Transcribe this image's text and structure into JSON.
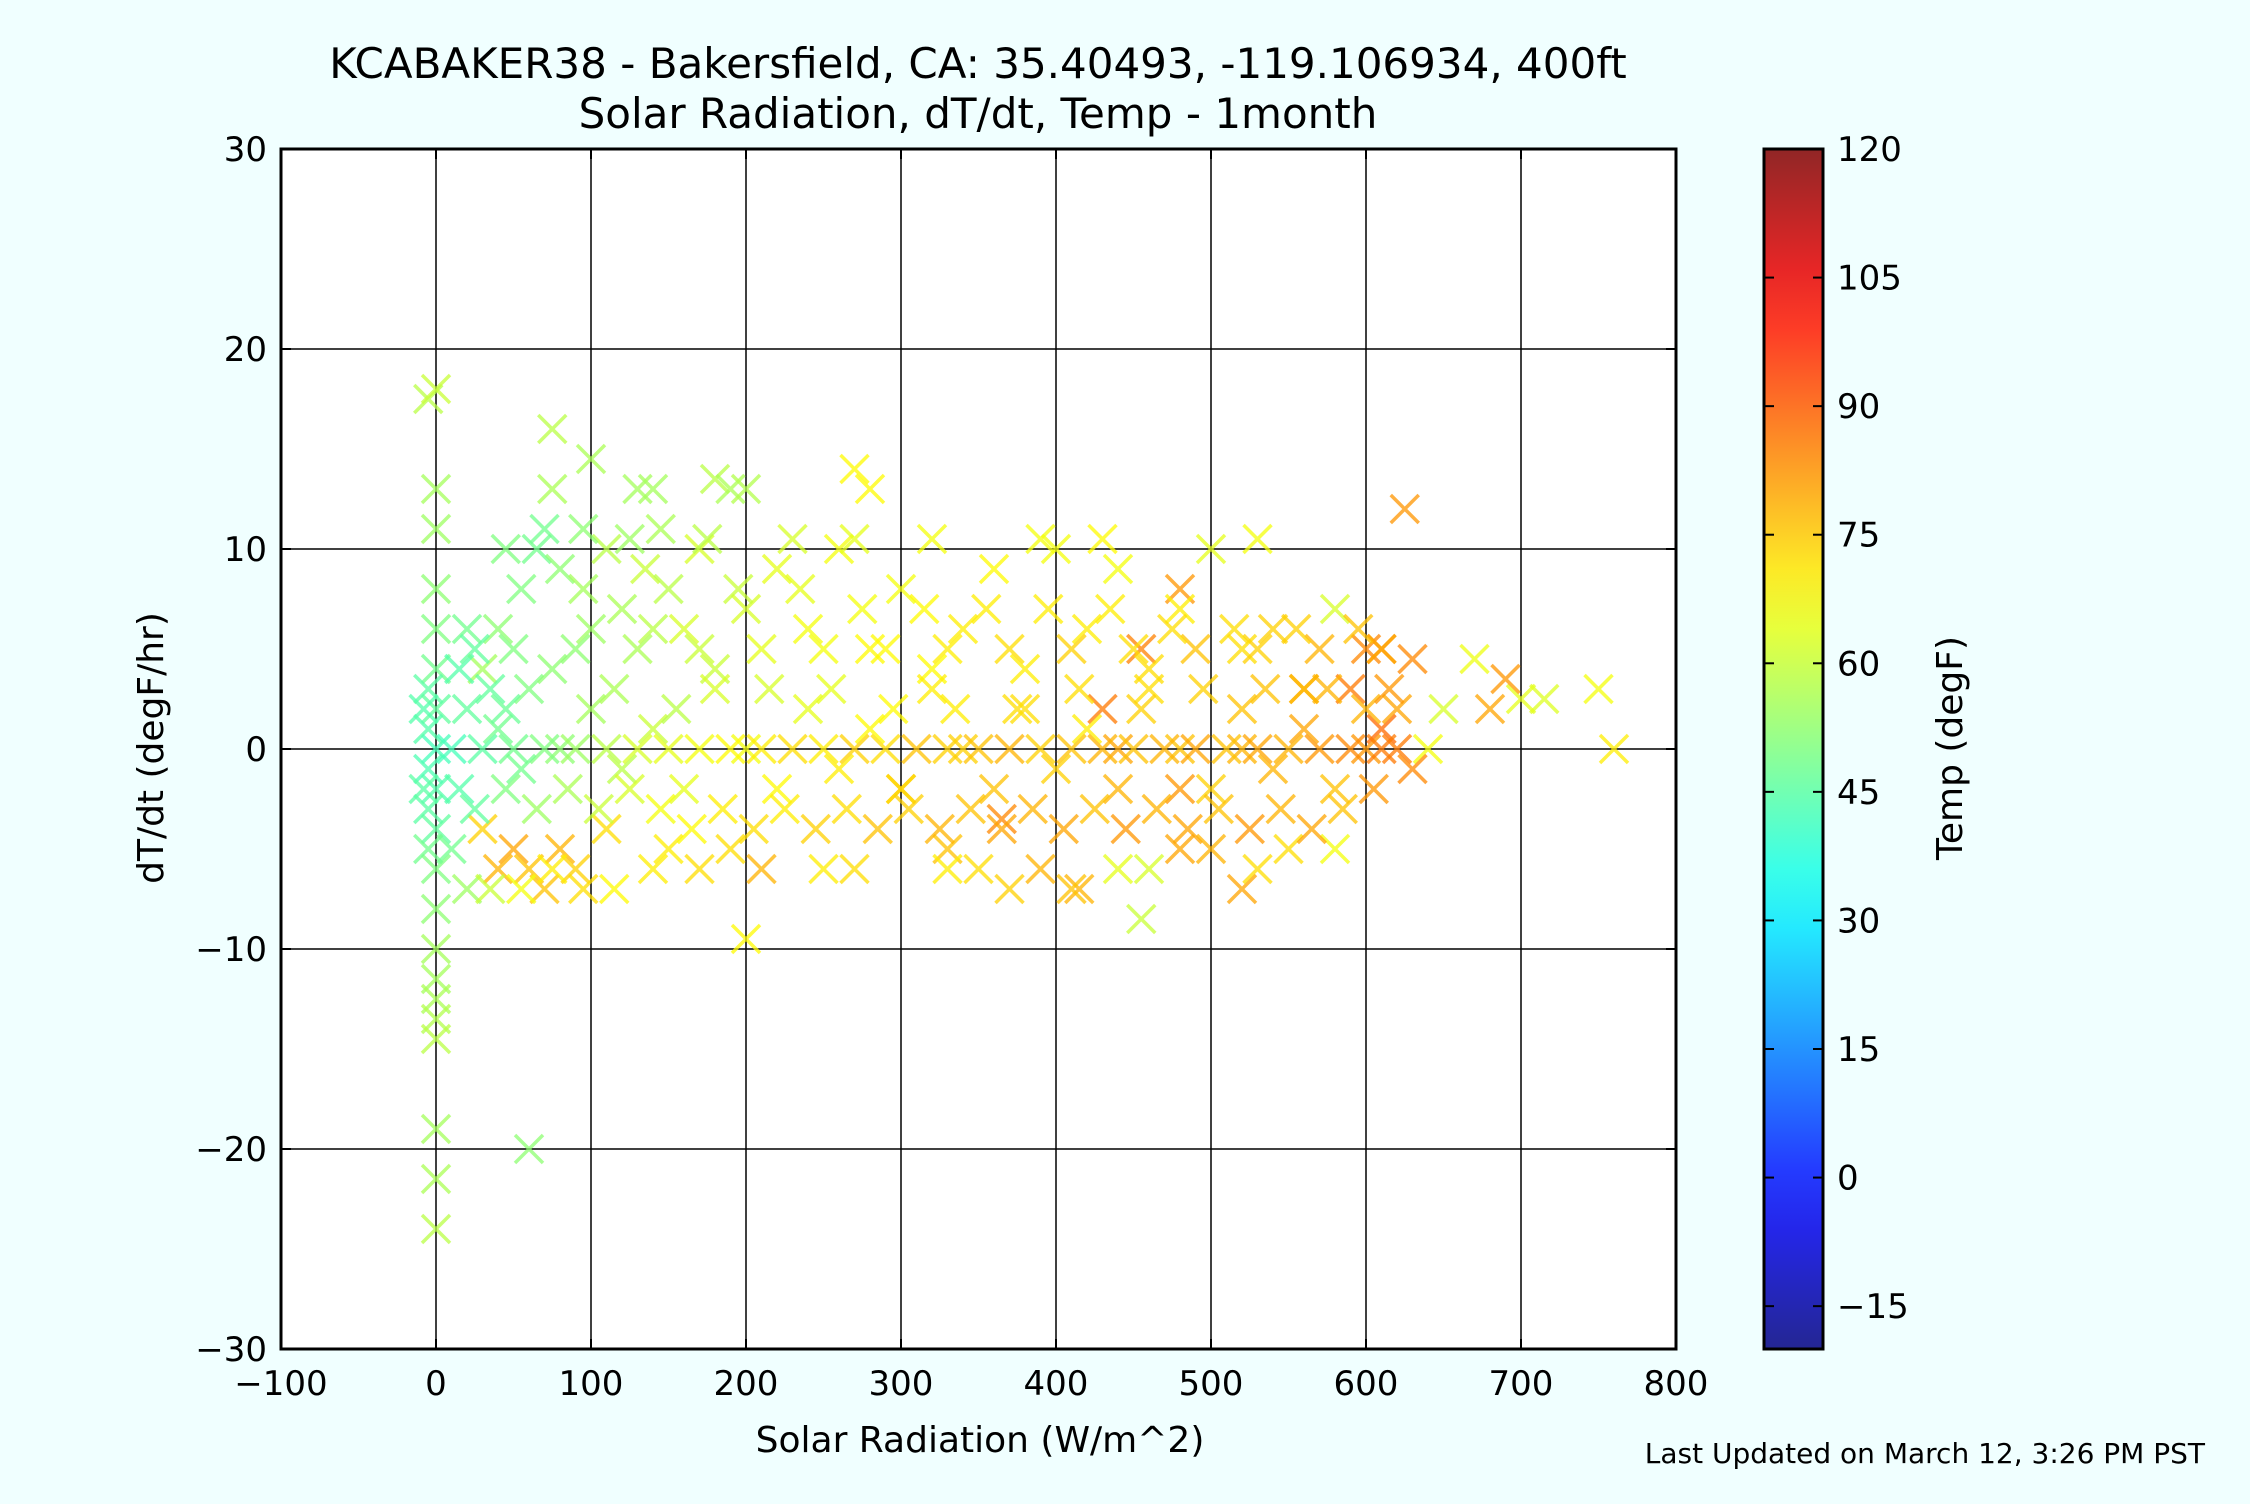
{
  "chart_data": {
    "type": "scatter",
    "title": "KCABAKER38 - Bakersfield, CA: 35.40493, -119.106934, 400ft",
    "subtitle": "Solar Radiation, dT/dt, Temp - 1month",
    "xlabel": "Solar Radiation (W/m^2)",
    "ylabel": "dT/dt (degF/hr)",
    "xlim": [
      -100,
      800
    ],
    "ylim": [
      -30,
      30
    ],
    "x_ticks": [
      -100,
      0,
      100,
      200,
      300,
      400,
      500,
      600,
      700,
      800
    ],
    "x_tick_labels": [
      "−100",
      "0",
      "100",
      "200",
      "300",
      "400",
      "500",
      "600",
      "700",
      "800"
    ],
    "y_ticks": [
      -30,
      -20,
      -10,
      0,
      10,
      20,
      30
    ],
    "y_tick_labels": [
      "−30",
      "−20",
      "−10",
      "0",
      "10",
      "20",
      "30"
    ],
    "grid": true,
    "marker": "x",
    "colorbar": {
      "label": "Temp (degF)",
      "range": [
        -20,
        120
      ],
      "ticks": [
        -15,
        0,
        15,
        30,
        45,
        60,
        75,
        90,
        105,
        120
      ],
      "tick_labels": [
        "−15",
        "0",
        "15",
        "30",
        "45",
        "60",
        "75",
        "90",
        "105",
        "120"
      ],
      "colormap": "jet"
    },
    "points": [
      [
        -5,
        17.5,
        58
      ],
      [
        0,
        18,
        60
      ],
      [
        0,
        13,
        55
      ],
      [
        0,
        11,
        54
      ],
      [
        0,
        8,
        52
      ],
      [
        0,
        6,
        50
      ],
      [
        0,
        4,
        48
      ],
      [
        0,
        2,
        46
      ],
      [
        0,
        0,
        42
      ],
      [
        0,
        -2,
        44
      ],
      [
        0,
        -4,
        46
      ],
      [
        0,
        -6,
        50
      ],
      [
        0,
        -8,
        52
      ],
      [
        0,
        -10,
        55
      ],
      [
        0,
        -11.5,
        55
      ],
      [
        0,
        -12.5,
        56
      ],
      [
        0,
        -13.5,
        57
      ],
      [
        0,
        -14.5,
        58
      ],
      [
        0,
        -19,
        55
      ],
      [
        0,
        -21.5,
        56
      ],
      [
        0,
        -24,
        58
      ],
      [
        -5,
        1,
        44
      ],
      [
        -5,
        3,
        45
      ],
      [
        -5,
        -1,
        43
      ],
      [
        -5,
        -3,
        45
      ],
      [
        -5,
        -5,
        48
      ],
      [
        -8,
        2,
        44
      ],
      [
        -8,
        -2,
        45
      ],
      [
        60,
        -20,
        52
      ],
      [
        200,
        -9.5,
        68
      ],
      [
        455,
        -8.5,
        60
      ],
      [
        520,
        -7,
        80
      ],
      [
        415,
        -7,
        78
      ],
      [
        625,
        12,
        82
      ],
      [
        75,
        16,
        58
      ],
      [
        100,
        14.5,
        56
      ],
      [
        270,
        14,
        68
      ],
      [
        280,
        13,
        68
      ],
      [
        75,
        13,
        56
      ],
      [
        130,
        13,
        55
      ],
      [
        140,
        13,
        55
      ],
      [
        180,
        13.5,
        58
      ],
      [
        190,
        13,
        56
      ],
      [
        200,
        13,
        57
      ],
      [
        750,
        3,
        66
      ],
      [
        760,
        0,
        70
      ],
      [
        715,
        2.5,
        63
      ],
      [
        700,
        2.5,
        64
      ],
      [
        690,
        3.5,
        82
      ],
      [
        680,
        2,
        80
      ],
      [
        670,
        4.5,
        65
      ],
      [
        650,
        2,
        62
      ],
      [
        640,
        0,
        66
      ],
      [
        620,
        0,
        86
      ],
      [
        610,
        1,
        88
      ],
      [
        600,
        5,
        84
      ],
      [
        610,
        5,
        82
      ],
      [
        550,
        -5,
        72
      ],
      [
        580,
        -5,
        66
      ],
      [
        480,
        8,
        82
      ],
      [
        455,
        5,
        85
      ],
      [
        430,
        2,
        86
      ],
      [
        365,
        -3.5,
        84
      ],
      [
        440,
        0,
        80
      ],
      [
        480,
        -2,
        82
      ],
      [
        520,
        0,
        78
      ],
      [
        560,
        3,
        84
      ],
      [
        590,
        3,
        86
      ],
      [
        330,
        -5,
        76
      ],
      [
        300,
        -2,
        78
      ],
      [
        40,
        -6,
        78
      ],
      [
        50,
        -5,
        80
      ],
      [
        60,
        -6,
        76
      ],
      [
        70,
        -7,
        76
      ],
      [
        80,
        -5,
        78
      ],
      [
        30,
        -4,
        74
      ],
      [
        90,
        -6,
        74
      ],
      [
        110,
        -4,
        72
      ],
      [
        150,
        -5,
        70
      ],
      [
        190,
        -5,
        72
      ],
      [
        210,
        -6,
        78
      ],
      [
        30,
        4,
        55
      ],
      [
        40,
        6,
        52
      ],
      [
        55,
        8,
        50
      ],
      [
        65,
        10,
        48
      ],
      [
        80,
        9,
        52
      ],
      [
        95,
        8,
        55
      ],
      [
        110,
        10,
        58
      ],
      [
        120,
        7,
        56
      ],
      [
        135,
        9,
        60
      ],
      [
        150,
        8,
        58
      ],
      [
        160,
        6,
        62
      ],
      [
        170,
        10,
        62
      ],
      [
        180,
        4,
        60
      ],
      [
        200,
        7,
        62
      ],
      [
        220,
        9,
        64
      ],
      [
        240,
        6,
        66
      ],
      [
        260,
        10,
        66
      ],
      [
        280,
        5,
        68
      ],
      [
        300,
        8,
        66
      ],
      [
        320,
        4,
        68
      ],
      [
        340,
        6,
        70
      ],
      [
        360,
        9,
        68
      ],
      [
        380,
        4,
        70
      ],
      [
        400,
        10,
        66
      ],
      [
        420,
        6,
        70
      ],
      [
        440,
        9,
        66
      ],
      [
        460,
        4,
        72
      ],
      [
        480,
        7,
        70
      ],
      [
        500,
        10,
        64
      ],
      [
        520,
        5,
        72
      ],
      [
        540,
        6,
        74
      ],
      [
        560,
        3,
        76
      ],
      [
        580,
        7,
        62
      ],
      [
        600,
        2,
        78
      ],
      [
        20,
        2,
        46
      ],
      [
        40,
        1,
        48
      ],
      [
        60,
        3,
        50
      ],
      [
        80,
        0,
        52
      ],
      [
        100,
        2,
        55
      ],
      [
        120,
        -1,
        58
      ],
      [
        140,
        1,
        60
      ],
      [
        160,
        -2,
        64
      ],
      [
        180,
        3,
        62
      ],
      [
        200,
        0,
        66
      ],
      [
        220,
        -2,
        68
      ],
      [
        240,
        2,
        64
      ],
      [
        260,
        -1,
        70
      ],
      [
        280,
        1,
        68
      ],
      [
        300,
        -2,
        72
      ],
      [
        320,
        3,
        70
      ],
      [
        340,
        0,
        74
      ],
      [
        360,
        -2,
        76
      ],
      [
        380,
        2,
        72
      ],
      [
        400,
        -1,
        74
      ],
      [
        420,
        1,
        70
      ],
      [
        440,
        -2,
        78
      ],
      [
        460,
        3,
        72
      ],
      [
        480,
        0,
        76
      ],
      [
        500,
        -2,
        74
      ],
      [
        520,
        2,
        76
      ],
      [
        540,
        -1,
        78
      ],
      [
        560,
        1,
        80
      ],
      [
        580,
        -2,
        76
      ],
      [
        600,
        0,
        82
      ],
      [
        620,
        2,
        80
      ],
      [
        630,
        -1,
        84
      ],
      [
        15,
        -2,
        44
      ],
      [
        25,
        -3,
        46
      ],
      [
        45,
        -2,
        50
      ],
      [
        65,
        -3,
        54
      ],
      [
        85,
        -2,
        56
      ],
      [
        105,
        -3,
        60
      ],
      [
        125,
        -2,
        62
      ],
      [
        145,
        -3,
        66
      ],
      [
        165,
        -4,
        68
      ],
      [
        185,
        -3,
        70
      ],
      [
        205,
        -4,
        72
      ],
      [
        225,
        -3,
        70
      ],
      [
        245,
        -4,
        74
      ],
      [
        265,
        -3,
        72
      ],
      [
        285,
        -4,
        76
      ],
      [
        305,
        -3,
        74
      ],
      [
        325,
        -4,
        78
      ],
      [
        345,
        -3,
        76
      ],
      [
        365,
        -4,
        80
      ],
      [
        385,
        -3,
        78
      ],
      [
        405,
        -4,
        80
      ],
      [
        425,
        -3,
        76
      ],
      [
        445,
        -4,
        82
      ],
      [
        465,
        -3,
        78
      ],
      [
        485,
        -4,
        80
      ],
      [
        505,
        -3,
        76
      ],
      [
        525,
        -4,
        82
      ],
      [
        545,
        -3,
        78
      ],
      [
        565,
        -4,
        80
      ],
      [
        585,
        -3,
        76
      ],
      [
        605,
        -2,
        82
      ],
      [
        10,
        0,
        42
      ],
      [
        30,
        0,
        45
      ],
      [
        50,
        0,
        48
      ],
      [
        70,
        0,
        50
      ],
      [
        90,
        0,
        54
      ],
      [
        110,
        0,
        58
      ],
      [
        130,
        0,
        62
      ],
      [
        150,
        0,
        64
      ],
      [
        170,
        0,
        66
      ],
      [
        190,
        0,
        68
      ],
      [
        210,
        0,
        70
      ],
      [
        230,
        0,
        72
      ],
      [
        250,
        0,
        70
      ],
      [
        270,
        0,
        74
      ],
      [
        290,
        0,
        72
      ],
      [
        310,
        0,
        76
      ],
      [
        330,
        0,
        74
      ],
      [
        350,
        0,
        76
      ],
      [
        370,
        0,
        78
      ],
      [
        390,
        0,
        74
      ],
      [
        410,
        0,
        76
      ],
      [
        430,
        0,
        78
      ],
      [
        450,
        0,
        76
      ],
      [
        470,
        0,
        78
      ],
      [
        490,
        0,
        80
      ],
      [
        510,
        0,
        76
      ],
      [
        530,
        0,
        80
      ],
      [
        550,
        0,
        78
      ],
      [
        570,
        0,
        82
      ],
      [
        590,
        0,
        84
      ],
      [
        610,
        0,
        86
      ],
      [
        20,
        6,
        48
      ],
      [
        50,
        5,
        50
      ],
      [
        90,
        5,
        52
      ],
      [
        130,
        5,
        56
      ],
      [
        170,
        5,
        60
      ],
      [
        210,
        5,
        64
      ],
      [
        250,
        5,
        66
      ],
      [
        290,
        5,
        68
      ],
      [
        330,
        5,
        70
      ],
      [
        370,
        5,
        72
      ],
      [
        410,
        5,
        74
      ],
      [
        450,
        5,
        72
      ],
      [
        490,
        5,
        76
      ],
      [
        530,
        5,
        74
      ],
      [
        570,
        5,
        78
      ],
      [
        610,
        5,
        80
      ],
      [
        630,
        4.5,
        84
      ],
      [
        45,
        10,
        50
      ],
      [
        70,
        11,
        48
      ],
      [
        95,
        11,
        52
      ],
      [
        125,
        10.5,
        54
      ],
      [
        145,
        11,
        56
      ],
      [
        175,
        10.5,
        58
      ],
      [
        230,
        10.5,
        62
      ],
      [
        270,
        10.5,
        64
      ],
      [
        320,
        10.5,
        66
      ],
      [
        390,
        10.5,
        66
      ],
      [
        430,
        10.5,
        68
      ],
      [
        530,
        10.5,
        66
      ],
      [
        15,
        4,
        44
      ],
      [
        25,
        5,
        46
      ],
      [
        35,
        3,
        46
      ],
      [
        45,
        2,
        47
      ],
      [
        55,
        -1,
        48
      ],
      [
        75,
        4,
        52
      ],
      [
        100,
        6,
        54
      ],
      [
        115,
        3,
        56
      ],
      [
        140,
        6,
        58
      ],
      [
        155,
        2,
        58
      ],
      [
        195,
        8,
        60
      ],
      [
        215,
        3,
        62
      ],
      [
        235,
        8,
        64
      ],
      [
        255,
        3,
        64
      ],
      [
        275,
        7,
        66
      ],
      [
        295,
        2,
        68
      ],
      [
        315,
        7,
        68
      ],
      [
        335,
        2,
        70
      ],
      [
        355,
        7,
        70
      ],
      [
        375,
        2,
        72
      ],
      [
        395,
        7,
        70
      ],
      [
        415,
        3,
        72
      ],
      [
        435,
        7,
        70
      ],
      [
        455,
        2,
        74
      ],
      [
        475,
        6,
        72
      ],
      [
        495,
        3,
        74
      ],
      [
        515,
        6,
        72
      ],
      [
        535,
        3,
        76
      ],
      [
        555,
        6,
        74
      ],
      [
        575,
        3,
        78
      ],
      [
        595,
        6,
        76
      ],
      [
        615,
        3,
        82
      ],
      [
        10,
        -5,
        48
      ],
      [
        20,
        -7,
        54
      ],
      [
        35,
        -7,
        60
      ],
      [
        55,
        -7,
        66
      ],
      [
        75,
        -6,
        70
      ],
      [
        95,
        -7,
        72
      ],
      [
        115,
        -7,
        68
      ],
      [
        140,
        -6,
        70
      ],
      [
        170,
        -6,
        72
      ],
      [
        250,
        -6,
        70
      ],
      [
        270,
        -6,
        72
      ],
      [
        330,
        -6,
        70
      ],
      [
        350,
        -6,
        72
      ],
      [
        370,
        -7,
        74
      ],
      [
        390,
        -6,
        78
      ],
      [
        410,
        -7,
        76
      ],
      [
        440,
        -6,
        64
      ],
      [
        460,
        -6,
        62
      ],
      [
        480,
        -5,
        80
      ],
      [
        500,
        -5,
        78
      ],
      [
        530,
        -6,
        72
      ]
    ]
  },
  "footer": {
    "last_updated": "Last Updated on March 12, 3:26 PM PST"
  }
}
